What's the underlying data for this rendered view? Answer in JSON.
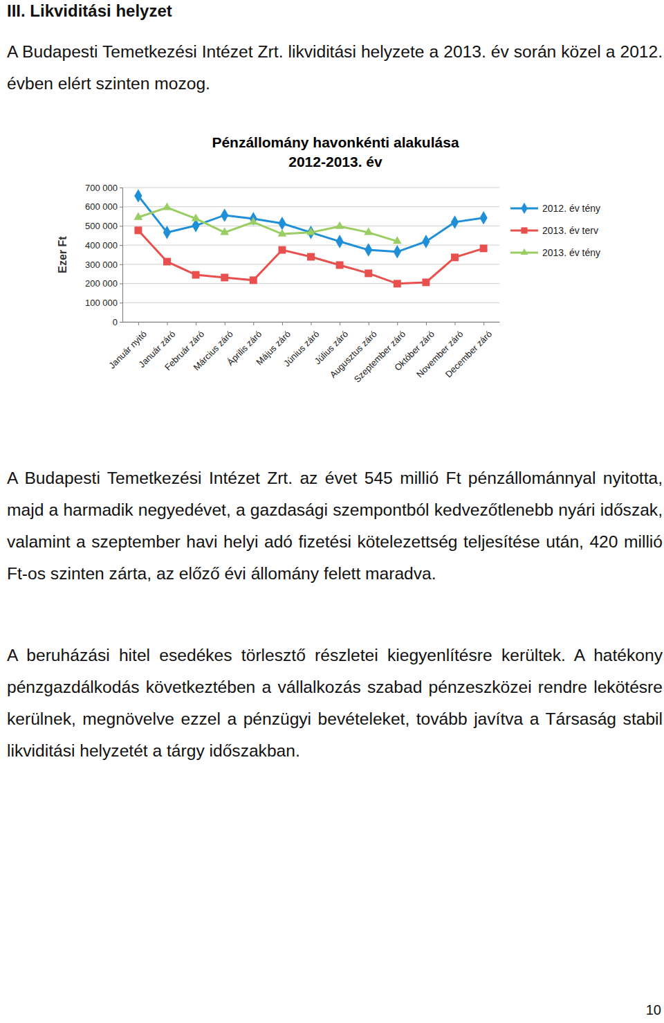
{
  "heading": "III. Likviditási helyzet",
  "intro": "A Budapesti Temetkezési Intézet Zrt. likviditási helyzete a 2013. év során közel a 2012. évben elért szinten mozog.",
  "chart_data": {
    "type": "line",
    "title": "Pénzállomány havonkénti alakulása",
    "subtitle": "2012-2013. év",
    "y_label": "Ezer Ft",
    "categories": [
      "Január nyitó",
      "Január záró",
      "Február záró",
      "Március záró",
      "Április záró",
      "Május záró",
      "Június záró",
      "Július záró",
      "Augusztus záró",
      "Szeptember záró",
      "Október záró",
      "November záró",
      "December záró"
    ],
    "series": [
      {
        "name": "2012. év tény",
        "color": "#1f8fd8",
        "marker": "diamond",
        "values": [
          657000,
          466000,
          502000,
          556000,
          538000,
          513000,
          466000,
          419000,
          375000,
          365000,
          419000,
          520000,
          542000
        ]
      },
      {
        "name": "2013. év terv",
        "color": "#e8504e",
        "marker": "square",
        "values": [
          477000,
          314000,
          245000,
          231000,
          217000,
          375000,
          339000,
          296000,
          253000,
          199000,
          206000,
          336000,
          383000
        ]
      },
      {
        "name": "2013. év tény",
        "color": "#9acd62",
        "marker": "triangle",
        "values": [
          545000,
          596000,
          538000,
          466000,
          520000,
          458000,
          466000,
          498000,
          466000,
          420000,
          null,
          null,
          null
        ]
      }
    ],
    "ylim": [
      0,
      700000
    ],
    "yticks": [
      0,
      {
        "value": 100000,
        "label": "100 000"
      },
      {
        "value": 200000,
        "label": "200 000"
      },
      {
        "value": 300000,
        "label": "300 000"
      },
      {
        "value": 400000,
        "label": "400 000"
      },
      {
        "value": 500000,
        "label": "500 000"
      },
      {
        "value": 600000,
        "label": "600 000"
      },
      {
        "value": 700000,
        "label": "700 000"
      }
    ],
    "grid": true,
    "legend": "right"
  },
  "paragraphs": [
    "A Budapesti Temetkezési Intézet Zrt. az évet 545 millió Ft pénzállománnyal nyitotta, majd a harmadik negyedévet, a gazdasági szempontból kedvezőtlenebb nyári időszak, valamint a szeptember havi helyi adó fizetési kötelezettség teljesítése után, 420 millió Ft-os szinten zárta, az előző évi állomány felett maradva.",
    "A beruházási hitel esedékes törlesztő részletei kiegyenlítésre kerültek. A hatékony pénzgazdálkodás következtében a vállalkozás szabad pénzeszközei rendre lekötésre kerülnek, megnövelve ezzel a pénzügyi bevételeket, tovább javítva a Társaság stabil likviditási helyzetét a tárgy időszakban."
  ],
  "page_number": "10"
}
